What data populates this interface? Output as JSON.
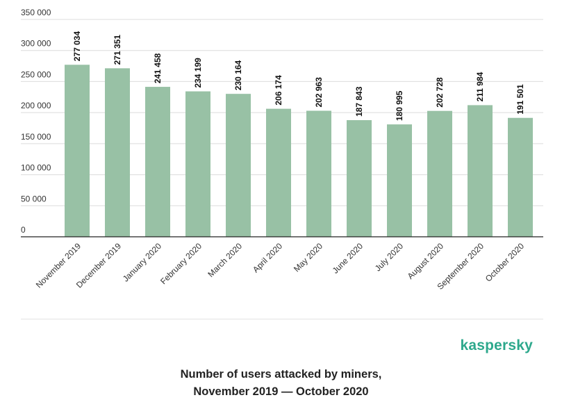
{
  "chart_data": {
    "type": "bar",
    "title": "Number of users attacked by miners, November 2019 — October 2020",
    "categories": [
      "November 2019",
      "December 2019",
      "January 2020",
      "February 2020",
      "March 2020",
      "April 2020",
      "May 2020",
      "June 2020",
      "July 2020",
      "August 2020",
      "September 2020",
      "October 2020"
    ],
    "values": [
      277034,
      271351,
      241458,
      234199,
      230164,
      206174,
      202963,
      187843,
      180995,
      202728,
      211984,
      191501
    ],
    "value_labels": [
      "277 034",
      "271 351",
      "241 458",
      "234 199",
      "230 164",
      "206 174",
      "202 963",
      "187 843",
      "180 995",
      "202 728",
      "211 984",
      "191 501"
    ],
    "y_ticks": [
      0,
      50000,
      100000,
      150000,
      200000,
      250000,
      300000,
      350000
    ],
    "y_tick_labels": [
      "0",
      "50 000",
      "100 000",
      "150 000",
      "200 000",
      "250 000",
      "300 000",
      "350 000"
    ],
    "ylim": [
      0,
      350000
    ],
    "xlabel": "",
    "ylabel": "",
    "grid": true,
    "bar_color": "#98c1a5"
  },
  "brand": {
    "name": "kaspersky",
    "color": "#2da88c"
  },
  "caption": {
    "line1": "Number of users attacked by miners,",
    "line2": "November 2019 — October 2020"
  }
}
